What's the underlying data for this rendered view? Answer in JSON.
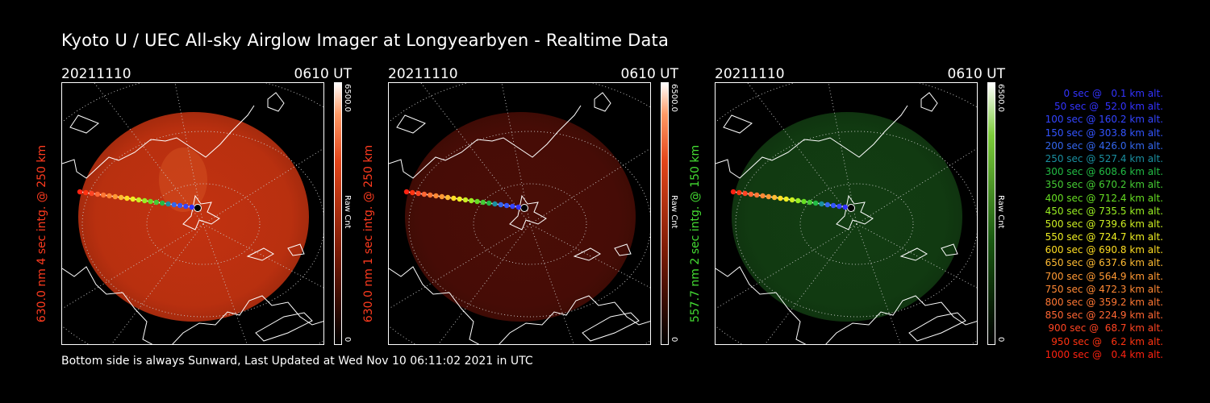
{
  "title": "Kyoto U / UEC All-sky Airglow Imager at Longyearbyen - Realtime Data",
  "footer": "Bottom side is always Sunward, Last Updated at Wed Nov 10 06:11:02 2021 in UTC",
  "panels": [
    {
      "date": "20211110",
      "time": "0610 UT",
      "ylabel": "630.0 nm 4 sec intg. @ 250 km",
      "label_color": "#ff3b1f",
      "cb_max": "6500.0",
      "cb_unit": "Raw Cnt",
      "cb_min": "0",
      "tone": "#c23210",
      "tone_opacity": 0.95
    },
    {
      "date": "20211110",
      "time": "0610 UT",
      "ylabel": "630.0 nm 1 sec intg. @ 250 km",
      "label_color": "#ff3b1f",
      "cb_max": "6500.0",
      "cb_unit": "Raw Cnt",
      "cb_min": "0",
      "tone": "#4a0d06",
      "tone_opacity": 0.95
    },
    {
      "date": "20211110",
      "time": "0610 UT",
      "ylabel": "557.7 nm 2 sec intg. @ 150 km",
      "label_color": "#44dd33",
      "cb_max": "6500.0",
      "cb_unit": "Raw Cnt",
      "cb_min": "0",
      "tone": "#123d12",
      "tone_opacity": 0.95
    }
  ],
  "legend": [
    {
      "text": "   0 sec @   0.1 km alt.",
      "color": "#3333ff"
    },
    {
      "text": "  50 sec @  52.0 km alt.",
      "color": "#3333ff"
    },
    {
      "text": " 100 sec @ 160.2 km alt.",
      "color": "#3344ff"
    },
    {
      "text": " 150 sec @ 303.8 km alt.",
      "color": "#3355ff"
    },
    {
      "text": " 200 sec @ 426.0 km alt.",
      "color": "#3366ee"
    },
    {
      "text": " 250 sec @ 527.4 km alt.",
      "color": "#1a8fa0"
    },
    {
      "text": " 300 sec @ 608.6 km alt.",
      "color": "#22bb44"
    },
    {
      "text": " 350 sec @ 670.2 km alt.",
      "color": "#44cc33"
    },
    {
      "text": " 400 sec @ 712.4 km alt.",
      "color": "#66dd22"
    },
    {
      "text": " 450 sec @ 735.5 km alt.",
      "color": "#99ee22"
    },
    {
      "text": " 500 sec @ 739.6 km alt.",
      "color": "#ccee22"
    },
    {
      "text": " 550 sec @ 724.7 km alt.",
      "color": "#eeee22"
    },
    {
      "text": " 600 sec @ 690.8 km alt.",
      "color": "#ffdd22"
    },
    {
      "text": " 650 sec @ 637.6 km alt.",
      "color": "#ffbb33"
    },
    {
      "text": " 700 sec @ 564.9 km alt.",
      "color": "#ff9933"
    },
    {
      "text": " 750 sec @ 472.3 km alt.",
      "color": "#ff8833"
    },
    {
      "text": " 800 sec @ 359.2 km alt.",
      "color": "#ff7733"
    },
    {
      "text": " 850 sec @ 224.9 km alt.",
      "color": "#ff6633"
    },
    {
      "text": " 900 sec @  68.7 km alt.",
      "color": "#ff4422"
    },
    {
      "text": " 950 sec @   6.2 km alt.",
      "color": "#ff3311"
    },
    {
      "text": "1000 sec @   0.4 km alt.",
      "color": "#ff2211"
    }
  ]
}
